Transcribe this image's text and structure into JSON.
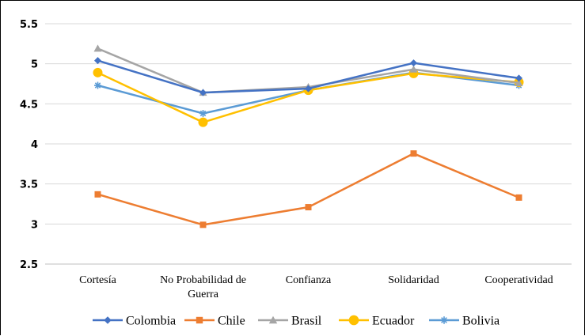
{
  "chart_data": {
    "type": "line",
    "categories": [
      "Cortesía",
      "No Probabilidad de Guerra",
      "Confianza",
      "Solidaridad",
      "Cooperatividad"
    ],
    "category_lines": [
      [
        "Cortesía"
      ],
      [
        "No Probabilidad de",
        "Guerra"
      ],
      [
        "Confianza"
      ],
      [
        "Solidaridad"
      ],
      [
        "Cooperatividad"
      ]
    ],
    "ylim": [
      2.5,
      5.5
    ],
    "yticks": [
      "2.5",
      "3",
      "3.5",
      "4",
      "4.5",
      "5",
      "5.5"
    ],
    "ytick_values": [
      2.5,
      3,
      3.5,
      4,
      4.5,
      5,
      5.5
    ],
    "grid": true,
    "legend_position": "bottom",
    "series": [
      {
        "name": "Colombia",
        "values": [
          5.04,
          4.64,
          4.69,
          5.01,
          4.82
        ],
        "color": "#4472C4",
        "marker": "diamond"
      },
      {
        "name": "Chile",
        "values": [
          3.37,
          2.99,
          3.21,
          3.88,
          3.33
        ],
        "color": "#ED7D31",
        "marker": "square"
      },
      {
        "name": "Brasil",
        "values": [
          5.19,
          4.64,
          4.71,
          4.93,
          4.76
        ],
        "color": "#A5A5A5",
        "marker": "triangle"
      },
      {
        "name": "Ecuador",
        "values": [
          4.89,
          4.27,
          4.67,
          4.88,
          4.77
        ],
        "color": "#FFC000",
        "marker": "circle"
      },
      {
        "name": "Bolivia",
        "values": [
          4.73,
          4.38,
          4.67,
          4.89,
          4.73
        ],
        "color": "#5B9BD5",
        "marker": "star"
      }
    ]
  }
}
